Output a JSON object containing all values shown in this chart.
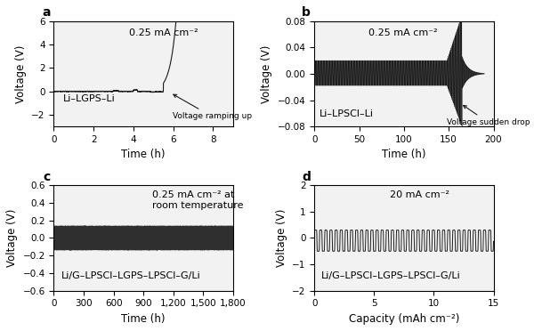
{
  "panel_a": {
    "label": "a",
    "annotation": "0.25 mA cm⁻²",
    "cell": "Li–LGPS–Li",
    "arrow_text": "Voltage ramping up",
    "xlabel": "Time (h)",
    "ylabel": "Voltage (V)",
    "xlim": [
      0,
      9
    ],
    "ylim": [
      -3,
      6
    ],
    "xticks": [
      0,
      2,
      4,
      6,
      8
    ],
    "yticks": [
      -2,
      0,
      2,
      4,
      6
    ]
  },
  "panel_b": {
    "label": "b",
    "annotation": "0.25 mA cm⁻²",
    "cell": "Li–LPSCl–Li",
    "arrow_text": "Voltage sudden drop",
    "xlabel": "Time (h)",
    "ylabel": "Voltage (V)",
    "xlim": [
      0,
      200
    ],
    "ylim": [
      -0.08,
      0.08
    ],
    "xticks": [
      0,
      50,
      100,
      150,
      200
    ],
    "yticks": [
      -0.08,
      -0.04,
      0,
      0.04,
      0.08
    ]
  },
  "panel_c": {
    "label": "c",
    "annotation": "0.25 mA cm⁻² at\nroom temperature",
    "cell": "Li/G–LPSCl–LGPS–LPSCl–G/Li",
    "xlabel": "Time (h)",
    "ylabel": "Voltage (V)",
    "xlim": [
      0,
      1800
    ],
    "ylim": [
      -0.6,
      0.6
    ],
    "xticks": [
      0,
      300,
      600,
      900,
      1200,
      1500,
      1800
    ],
    "xtick_labels": [
      "0",
      "300",
      "600",
      "900",
      "1,200",
      "1,500",
      "1,800"
    ],
    "yticks": [
      -0.6,
      -0.4,
      -0.2,
      0,
      0.2,
      0.4,
      0.6
    ]
  },
  "panel_d": {
    "label": "d",
    "annotation": "20 mA cm⁻²",
    "cell": "Li/G–LPSCl–LGPS–LPSCl–G/Li",
    "xlabel": "Capacity (mAh cm⁻²)",
    "ylabel": "Voltage (V)",
    "xlim": [
      0,
      15
    ],
    "ylim": [
      -2,
      2
    ],
    "xticks": [
      0,
      5,
      10,
      15
    ],
    "yticks": [
      -2,
      -1,
      0,
      1,
      2
    ]
  },
  "line_color": "#1a1a1a",
  "bg_color": "#ffffff",
  "axes_bg_color": "#f2f2f2",
  "label_fontsize": 8.5,
  "tick_fontsize": 7.5,
  "annotation_fontsize": 8,
  "cell_fontsize": 8,
  "bold_label_fontsize": 10
}
